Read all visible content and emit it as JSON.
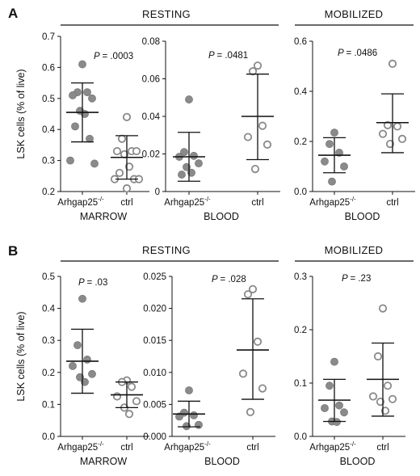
{
  "chart_data": [
    {
      "panel": "A",
      "group": "RESTING",
      "type": "scatter",
      "ylabel": "LSK cells (% of live)",
      "xlabel": "MARROW",
      "ylim": [
        0.2,
        0.7
      ],
      "yticks": [
        "0.2",
        "0.3",
        "0.4",
        "0.5",
        "0.6",
        "0.7"
      ],
      "p_value": "= .0003",
      "categories": [
        "Arhgap25",
        "ctrl"
      ],
      "series": [
        {
          "category": "Arhgap25",
          "filled": true,
          "mean": 0.455,
          "sd_low": 0.36,
          "sd_high": 0.55,
          "points": [
            0.61,
            0.52,
            0.52,
            0.51,
            0.5,
            0.46,
            0.45,
            0.41,
            0.37,
            0.3,
            0.29
          ]
        },
        {
          "category": "ctrl",
          "filled": false,
          "mean": 0.31,
          "sd_low": 0.24,
          "sd_high": 0.38,
          "points": [
            0.44,
            0.37,
            0.33,
            0.33,
            0.33,
            0.32,
            0.28,
            0.26,
            0.24,
            0.24,
            0.24,
            0.21
          ]
        }
      ]
    },
    {
      "panel": "A",
      "group": "RESTING",
      "type": "scatter",
      "xlabel": "BLOOD",
      "ylim": [
        0,
        0.08
      ],
      "yticks": [
        "0",
        "0.02",
        "0.04",
        "0.06",
        "0.08"
      ],
      "p_value": "= .0481",
      "categories": [
        "Arhgap25",
        "ctrl"
      ],
      "series": [
        {
          "category": "Arhgap25",
          "filled": true,
          "mean": 0.0185,
          "sd_low": 0.0055,
          "sd_high": 0.0315,
          "points": [
            0.049,
            0.021,
            0.019,
            0.0185,
            0.015,
            0.013,
            0.01,
            0.009
          ]
        },
        {
          "category": "ctrl",
          "filled": false,
          "mean": 0.04,
          "sd_low": 0.017,
          "sd_high": 0.0625,
          "points": [
            0.067,
            0.064,
            0.035,
            0.029,
            0.025,
            0.012
          ]
        }
      ]
    },
    {
      "panel": "A",
      "group": "MOBILIZED",
      "type": "scatter",
      "xlabel": "BLOOD",
      "ylim": [
        0,
        0.6
      ],
      "yticks": [
        "0.0",
        "0.2",
        "0.4",
        "0.6"
      ],
      "p_value": "= .0486",
      "categories": [
        "Arhgap25",
        "ctrl"
      ],
      "series": [
        {
          "category": "Arhgap25",
          "filled": true,
          "mean": 0.145,
          "sd_low": 0.075,
          "sd_high": 0.215,
          "points": [
            0.235,
            0.19,
            0.155,
            0.12,
            0.1,
            0.04
          ]
        },
        {
          "category": "ctrl",
          "filled": false,
          "mean": 0.275,
          "sd_low": 0.155,
          "sd_high": 0.39,
          "points": [
            0.51,
            0.265,
            0.26,
            0.23,
            0.21,
            0.19
          ]
        }
      ]
    },
    {
      "panel": "B",
      "group": "RESTING",
      "type": "scatter",
      "ylabel": "LSK cells (% of live)",
      "xlabel": "MARROW",
      "ylim": [
        0,
        0.5
      ],
      "yticks": [
        "0.0",
        "0.1",
        "0.2",
        "0.3",
        "0.4",
        "0.5"
      ],
      "p_value": "= .03",
      "categories": [
        "Arhgap25",
        "ctrl"
      ],
      "series": [
        {
          "category": "Arhgap25",
          "filled": true,
          "mean": 0.235,
          "sd_low": 0.135,
          "sd_high": 0.335,
          "points": [
            0.43,
            0.285,
            0.24,
            0.22,
            0.195,
            0.185,
            0.17
          ]
        },
        {
          "category": "ctrl",
          "filled": false,
          "mean": 0.13,
          "sd_low": 0.09,
          "sd_high": 0.17,
          "points": [
            0.175,
            0.17,
            0.155,
            0.125,
            0.11,
            0.09,
            0.07
          ]
        }
      ]
    },
    {
      "panel": "B",
      "group": "RESTING",
      "type": "scatter",
      "xlabel": "BLOOD",
      "ylim": [
        0,
        0.025
      ],
      "yticks": [
        "0.000",
        "0.005",
        "0.010",
        "0.015",
        "0.020",
        "0.025"
      ],
      "p_value": "= .028",
      "categories": [
        "Arhgap25",
        "ctrl"
      ],
      "series": [
        {
          "category": "Arhgap25",
          "filled": true,
          "mean": 0.0035,
          "sd_low": 0.0015,
          "sd_high": 0.0055,
          "points": [
            0.0072,
            0.0037,
            0.0033,
            0.0031,
            0.0018,
            0.0016
          ]
        },
        {
          "category": "ctrl",
          "filled": false,
          "mean": 0.0135,
          "sd_low": 0.0058,
          "sd_high": 0.0215,
          "points": [
            0.023,
            0.0222,
            0.0148,
            0.0098,
            0.0075,
            0.0038
          ]
        }
      ]
    },
    {
      "panel": "B",
      "group": "MOBILIZED",
      "type": "scatter",
      "xlabel": "BLOOD",
      "ylim": [
        0,
        0.3
      ],
      "yticks": [
        "0.0",
        "0.1",
        "0.2",
        "0.3"
      ],
      "p_value": "= .23",
      "categories": [
        "Arhgap25",
        "ctrl"
      ],
      "series": [
        {
          "category": "Arhgap25",
          "filled": true,
          "mean": 0.068,
          "sd_low": 0.028,
          "sd_high": 0.107,
          "points": [
            0.14,
            0.095,
            0.058,
            0.053,
            0.045,
            0.028,
            0.027
          ]
        },
        {
          "category": "ctrl",
          "filled": false,
          "mean": 0.107,
          "sd_low": 0.038,
          "sd_high": 0.175,
          "points": [
            0.24,
            0.15,
            0.095,
            0.075,
            0.07,
            0.065,
            0.048
          ]
        }
      ]
    }
  ],
  "labels": {
    "panel_a": "A",
    "panel_b": "B",
    "resting": "RESTING",
    "mobilized": "MOBILIZED",
    "p_prefix": "P",
    "cat_ko": "Arhgap25",
    "cat_ko_sup": "-/-",
    "cat_ctrl": "ctrl"
  }
}
